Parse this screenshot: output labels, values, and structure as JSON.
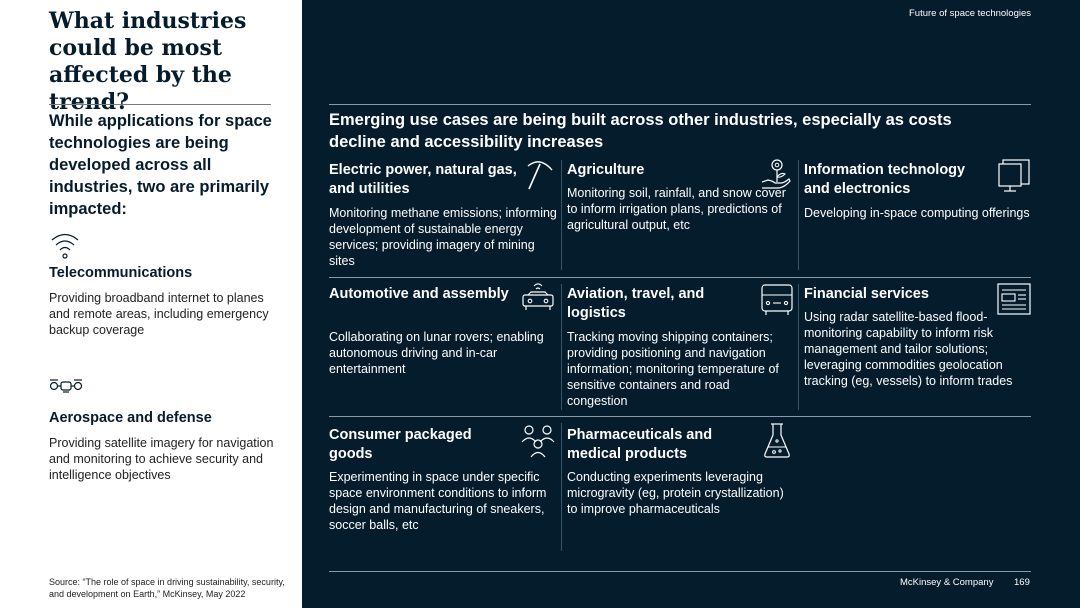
{
  "left": {
    "title": "What industries could be most affected by the trend?",
    "intro": "While applications for space technologies are being developed across all industries, two are primarily impacted:",
    "industries": [
      {
        "icon": "wifi-icon",
        "title": "Telecommunications",
        "desc": "Providing broadband internet to planes and remote areas, including emergency backup coverage"
      },
      {
        "icon": "drone-icon",
        "title": "Aerospace and defense",
        "desc": "Providing satellite imagery for navigation and monitoring to achieve security and intelligence objectives"
      }
    ],
    "source": "Source: “The role of space in driving sustainability, security, and development on Earth,” McKinsey, May 2022"
  },
  "right": {
    "header_label": "Future of space technologies",
    "subtitle": "Emerging use cases are being built across other industries, especially as costs decline and accessibility increases",
    "cells": [
      {
        "icon": "pickaxe-icon",
        "title": "Electric power, natural gas, and utilities",
        "desc": "Monitoring methane emissions; informing development of sustainable energy services; providing imagery of mining sites"
      },
      {
        "icon": "plant-hand-icon",
        "title": "Agriculture",
        "desc": "Monitoring soil, rainfall, and snow cover to inform irrigation plans, predictions of agricultural output, etc"
      },
      {
        "icon": "monitor-icon",
        "title": "Information technology and electronics",
        "desc": "Developing in-space computing offerings"
      },
      {
        "icon": "connected-car-icon",
        "title": "Automotive and assembly",
        "desc": "Collaborating on lunar rovers; enabling autonomous driving and in-car entertainment"
      },
      {
        "icon": "bus-icon",
        "title": "Aviation, travel, and logistics",
        "desc": "Tracking moving shipping containers; providing positioning and navigation information; monitoring temperature of sensitive containers and road congestion"
      },
      {
        "icon": "newspaper-icon",
        "title": "Financial services",
        "desc": "Using radar satellite-based flood-monitoring capability to inform risk management and tailor solutions; leveraging commodities geolocation tracking (eg, vessels) to inform trades"
      },
      {
        "icon": "people-icon",
        "title": "Consumer packaged goods",
        "desc": "Experimenting in space under specific space environment conditions to inform design and manufacturing of sneakers, soccer balls, etc"
      },
      {
        "icon": "flask-icon",
        "title": "Pharmaceuticals and medical products",
        "desc": "Conducting experiments leveraging microgravity (eg, protein crystallization) to improve pharmaceuticals"
      }
    ],
    "footer_brand": "McKinsey & Company",
    "page_number": "169"
  },
  "colors": {
    "navy": "#051c2c",
    "white": "#ffffff",
    "rule": "#8a99a6"
  }
}
